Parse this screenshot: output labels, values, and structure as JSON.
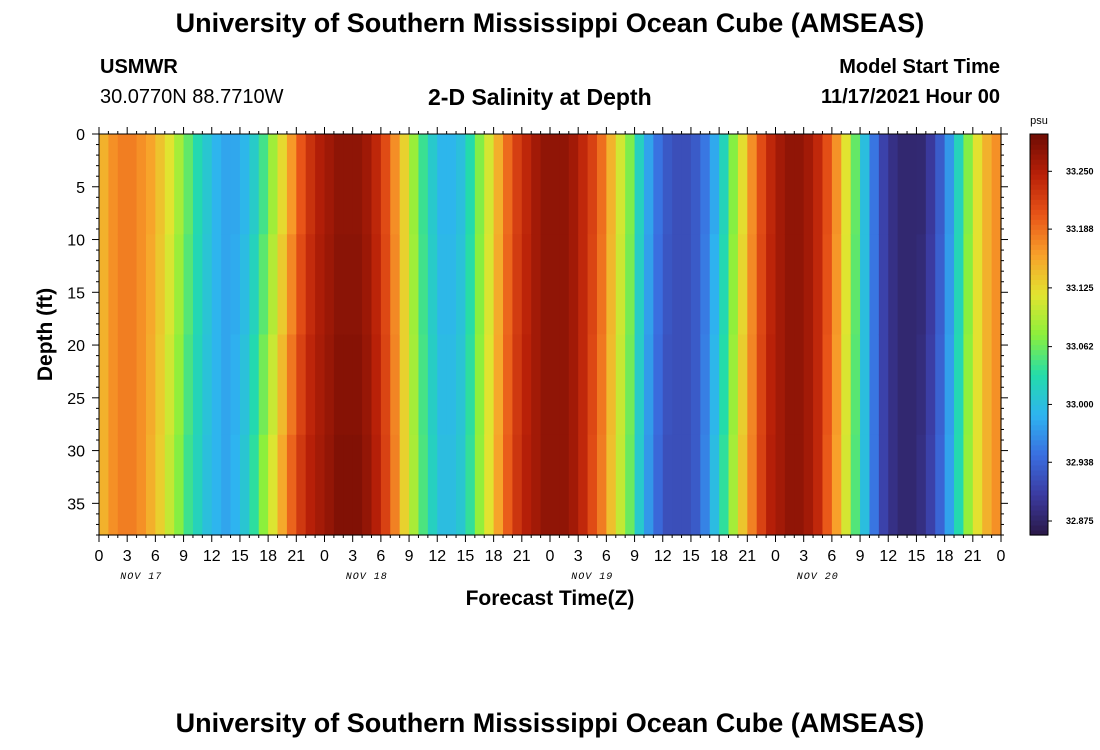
{
  "header": {
    "title": "University of Southern Mississippi Ocean Cube (AMSEAS)",
    "station": "USMWR",
    "coords": "30.0770N  88.7710W",
    "subtitle": "2-D Salinity at Depth",
    "start_label": "Model Start Time",
    "start_value": "11/17/2021 Hour 00"
  },
  "footer": {
    "title": "University of Southern Mississippi Ocean Cube (AMSEAS)"
  },
  "chart_data": {
    "type": "heatmap",
    "title": "2-D Salinity at Depth",
    "xlabel": "Forecast Time(Z)",
    "ylabel": "Depth (ft)",
    "x_range_hours": [
      0,
      96
    ],
    "x_tick_step_hours": 3,
    "x_tick_labels": [
      "0",
      "3",
      "6",
      "9",
      "12",
      "15",
      "18",
      "21",
      "0",
      "3",
      "6",
      "9",
      "12",
      "15",
      "18",
      "21",
      "0",
      "3",
      "6",
      "9",
      "12",
      "15",
      "18",
      "21",
      "0",
      "3",
      "6",
      "9",
      "12",
      "15",
      "18",
      "21",
      "0"
    ],
    "day_labels": [
      "NOV 17",
      "NOV 18",
      "NOV 19",
      "NOV 20"
    ],
    "y_range_ft": [
      0,
      38
    ],
    "y_ticks": [
      0,
      5,
      10,
      15,
      20,
      25,
      30,
      35
    ],
    "y_tick_labels": [
      "0",
      "5",
      "10",
      "15",
      "20",
      "25",
      "30",
      "35"
    ],
    "colorbar": {
      "unit": "psu",
      "min": 32.86,
      "max": 33.29,
      "ticks": [
        32.875,
        32.938,
        33.0,
        33.062,
        33.125,
        33.188,
        33.25
      ],
      "tick_labels": [
        "32.875",
        "32.938",
        "33.000",
        "33.062",
        "33.125",
        "33.188",
        "33.250"
      ],
      "colors": [
        "#2a1846",
        "#3b3aa0",
        "#3a6ee0",
        "#2eb4f0",
        "#23dcaa",
        "#8cf03c",
        "#e2e430",
        "#f8a02a",
        "#e85418",
        "#b82008",
        "#6e0c04"
      ]
    },
    "salinity_profile_surface": {
      "hours": [
        0,
        1,
        2,
        3,
        4,
        5,
        6,
        7,
        8,
        9,
        10,
        11,
        12,
        13,
        14,
        15,
        16,
        17,
        18,
        19,
        20,
        21,
        22,
        23,
        24,
        25,
        26,
        27,
        28,
        29,
        30,
        31,
        32,
        33,
        34,
        35,
        36,
        37,
        38,
        39,
        40,
        41,
        42,
        43,
        44,
        45,
        46,
        47,
        48,
        49,
        50,
        51,
        52,
        53,
        54,
        55,
        56,
        57,
        58,
        59,
        60,
        61,
        62,
        63,
        64,
        65,
        66,
        67,
        68,
        69,
        70,
        71,
        72,
        73,
        74,
        75,
        76,
        77,
        78,
        79,
        80,
        81,
        82,
        83,
        84,
        85,
        86,
        87,
        88,
        89,
        90,
        91,
        92,
        93,
        94,
        95,
        96
      ],
      "values": [
        33.15,
        33.17,
        33.18,
        33.18,
        33.17,
        33.16,
        33.14,
        33.12,
        33.09,
        33.06,
        33.03,
        33.01,
        32.99,
        32.98,
        32.98,
        32.99,
        33.01,
        33.04,
        33.08,
        33.12,
        33.16,
        33.2,
        33.23,
        33.25,
        33.26,
        33.27,
        33.27,
        33.27,
        33.26,
        33.24,
        33.21,
        33.17,
        33.13,
        33.08,
        33.04,
        33.01,
        32.99,
        32.99,
        33.0,
        33.03,
        33.07,
        33.11,
        33.15,
        33.19,
        33.22,
        33.24,
        33.26,
        33.27,
        33.27,
        33.27,
        33.26,
        33.24,
        33.22,
        33.19,
        33.15,
        33.11,
        33.07,
        33.02,
        32.98,
        32.95,
        32.93,
        32.92,
        32.92,
        32.93,
        32.95,
        32.98,
        33.02,
        33.07,
        33.12,
        33.17,
        33.21,
        33.24,
        33.26,
        33.27,
        33.27,
        33.26,
        33.24,
        33.21,
        33.17,
        33.12,
        33.06,
        33.0,
        32.95,
        32.91,
        32.89,
        32.88,
        32.88,
        32.88,
        32.9,
        32.93,
        32.97,
        33.02,
        33.07,
        33.12,
        33.15,
        33.17,
        33.18
      ]
    },
    "salinity_profile_bottom": {
      "hours": [
        0,
        1,
        2,
        3,
        4,
        5,
        6,
        7,
        8,
        9,
        10,
        11,
        12,
        13,
        14,
        15,
        16,
        17,
        18,
        19,
        20,
        21,
        22,
        23,
        24,
        25,
        26,
        27,
        28,
        29,
        30,
        31,
        32,
        33,
        34,
        35,
        36,
        37,
        38,
        39,
        40,
        41,
        42,
        43,
        44,
        45,
        46,
        47,
        48,
        49,
        50,
        51,
        52,
        53,
        54,
        55,
        56,
        57,
        58,
        59,
        60,
        61,
        62,
        63,
        64,
        65,
        66,
        67,
        68,
        69,
        70,
        71,
        72,
        73,
        74,
        75,
        76,
        77,
        78,
        79,
        80,
        81,
        82,
        83,
        84,
        85,
        86,
        87,
        88,
        89,
        90,
        91,
        92,
        93,
        94,
        95,
        96
      ],
      "values": [
        33.15,
        33.17,
        33.18,
        33.18,
        33.17,
        33.15,
        33.13,
        33.1,
        33.07,
        33.04,
        33.02,
        33.0,
        32.99,
        32.98,
        32.99,
        33.01,
        33.04,
        33.08,
        33.12,
        33.16,
        33.2,
        33.23,
        33.25,
        33.26,
        33.27,
        33.28,
        33.28,
        33.28,
        33.27,
        33.25,
        33.22,
        33.18,
        33.13,
        33.09,
        33.05,
        33.02,
        33.0,
        33.0,
        33.01,
        33.04,
        33.08,
        33.12,
        33.16,
        33.2,
        33.23,
        33.25,
        33.26,
        33.27,
        33.27,
        33.27,
        33.26,
        33.24,
        33.21,
        33.18,
        33.14,
        33.1,
        33.06,
        33.01,
        32.97,
        32.94,
        32.92,
        32.92,
        32.92,
        32.93,
        32.96,
        33.0,
        33.04,
        33.09,
        33.14,
        33.18,
        33.22,
        33.25,
        33.26,
        33.27,
        33.27,
        33.26,
        33.24,
        33.2,
        33.16,
        33.11,
        33.05,
        33.0,
        32.95,
        32.91,
        32.89,
        32.88,
        32.88,
        32.89,
        32.91,
        32.94,
        32.98,
        33.03,
        33.08,
        33.12,
        33.15,
        33.17,
        33.18
      ]
    }
  }
}
